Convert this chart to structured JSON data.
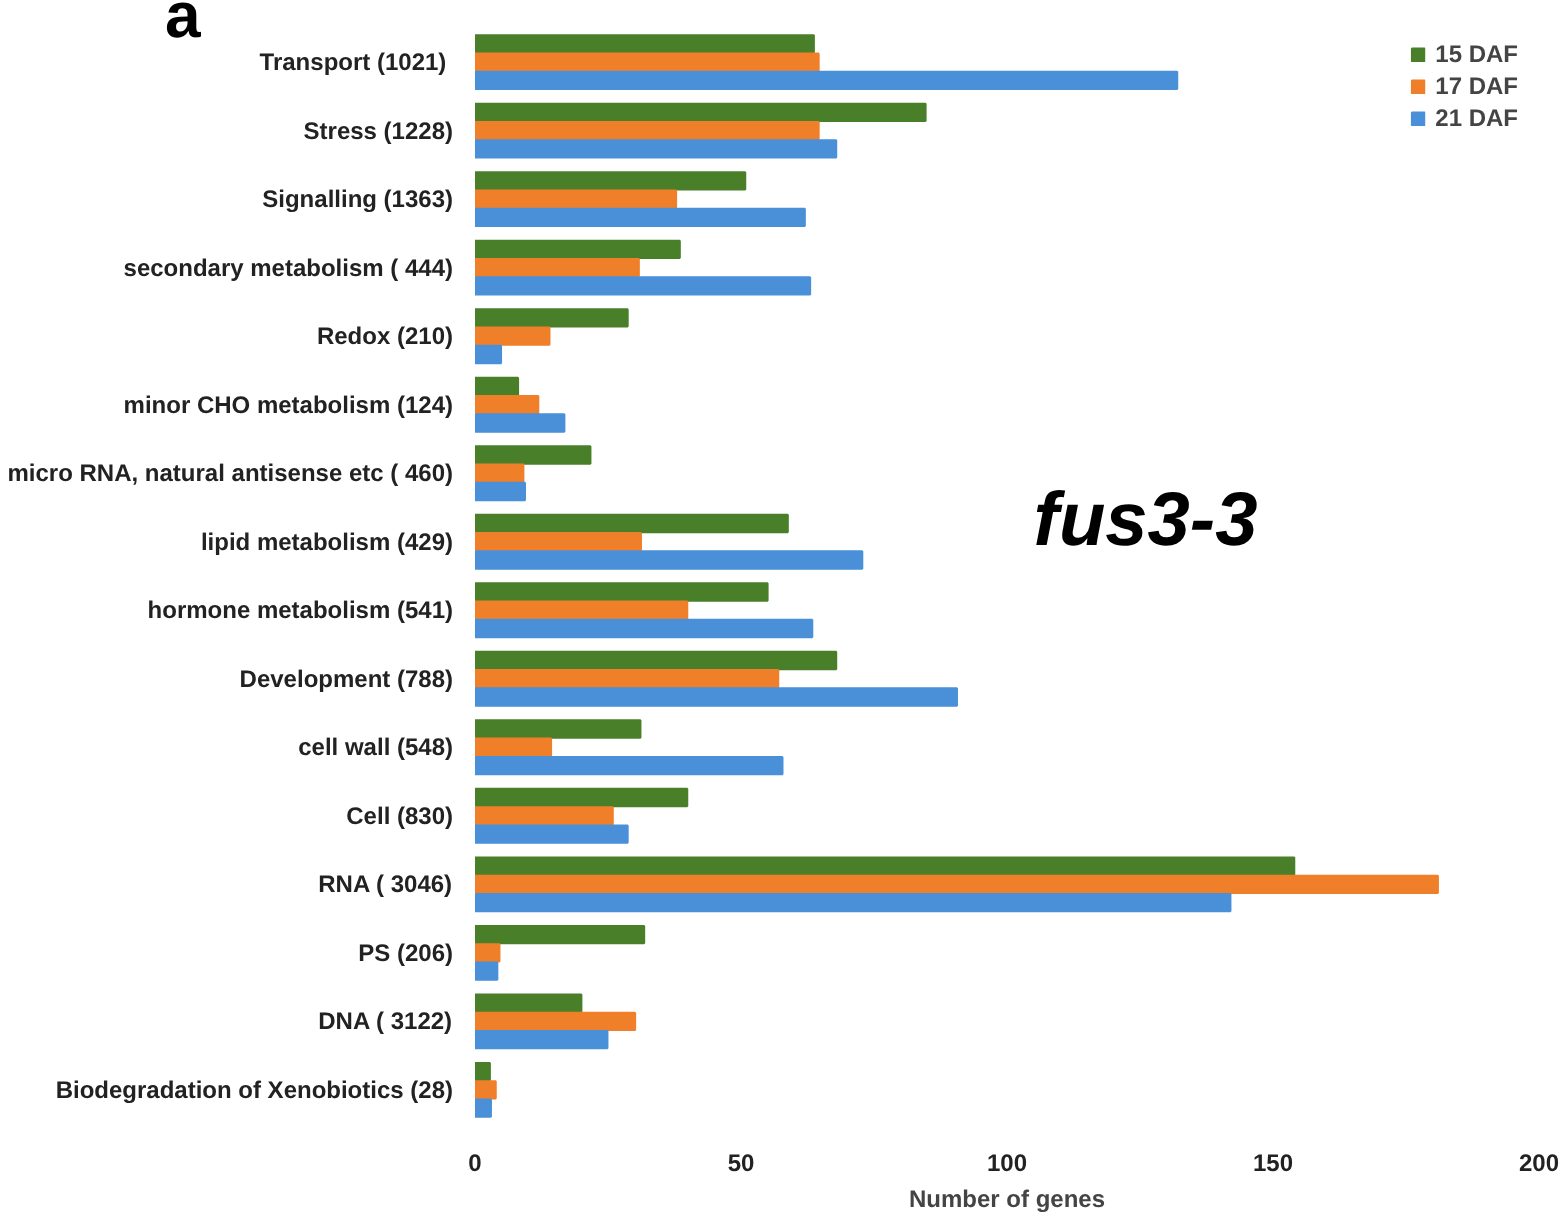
{
  "chart_data": {
    "type": "bar",
    "orientation": "horizontal",
    "xlabel": "Number of genes",
    "categories": [
      "Transport  (1021)",
      "Stress (1228)",
      "Signalling (1363)",
      "secondary metabolism ( 444)",
      "Redox (210)",
      "minor CHO metabolism (124)",
      "micro RNA, natural antisense etc ( 460)",
      "lipid metabolism (429)",
      "hormone metabolism (541)",
      "Development (788)",
      "cell wall (548)",
      "Cell (830)",
      "RNA ( 3046)",
      "PS (206)",
      "DNA ( 3122)",
      "Biodegradation of Xenobiotics (28)"
    ],
    "series": [
      {
        "name": "15 DAF",
        "color": "#4a7f2a",
        "values": [
          63.7,
          84.7,
          50.8,
          38.5,
          28.7,
          8.1,
          21.7,
          58.8,
          55,
          67.9,
          31.1,
          39.9,
          154,
          31.8,
          20,
          2.8
        ]
      },
      {
        "name": "17 DAF",
        "color": "#f07f2a",
        "values": [
          64.6,
          64.6,
          37.8,
          30.8,
          14,
          11.9,
          9.1,
          31.2,
          39.9,
          57,
          14.3,
          25.9,
          181,
          4.6,
          30.1,
          3.9
        ]
      },
      {
        "name": "21 DAF",
        "color": "#4a90d9",
        "values": [
          132,
          67.9,
          62,
          63,
          4.9,
          16.8,
          9.4,
          72.8,
          63.4,
          90.6,
          57.8,
          28.7,
          142,
          4.2,
          24.9,
          3
        ]
      }
    ],
    "xlim": [
      0,
      200
    ],
    "xticks": [
      0,
      50,
      100,
      150,
      200
    ],
    "grid": false,
    "legend": "top right",
    "annotations": [
      "a",
      "fus3-3"
    ]
  }
}
